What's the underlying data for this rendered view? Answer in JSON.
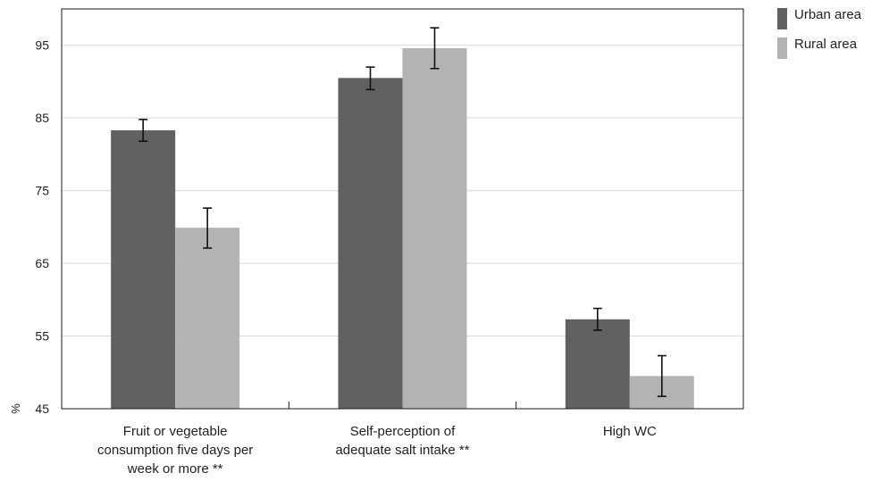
{
  "chart_data": {
    "type": "bar",
    "ylabel": "%",
    "ylim": [
      45,
      100
    ],
    "yticks": [
      45,
      55,
      65,
      75,
      85,
      95
    ],
    "grid": true,
    "legend_position": "top-right",
    "categories": [
      [
        "Fruit or vegetable",
        "consumption five days per",
        "week or more **"
      ],
      [
        "Self-perception of",
        "adequate salt intake **"
      ],
      [
        "High WC"
      ]
    ],
    "series": [
      {
        "name": "Urban area",
        "color": "#616161",
        "values": [
          83.3,
          90.5,
          57.3
        ],
        "error_low": [
          81.8,
          88.9,
          55.8
        ],
        "error_high": [
          84.8,
          92.0,
          58.8
        ]
      },
      {
        "name": "Rural area",
        "color": "#b3b3b3",
        "values": [
          69.9,
          94.6,
          49.5
        ],
        "error_low": [
          67.1,
          91.8,
          46.7
        ],
        "error_high": [
          72.6,
          97.4,
          52.3
        ]
      }
    ]
  }
}
